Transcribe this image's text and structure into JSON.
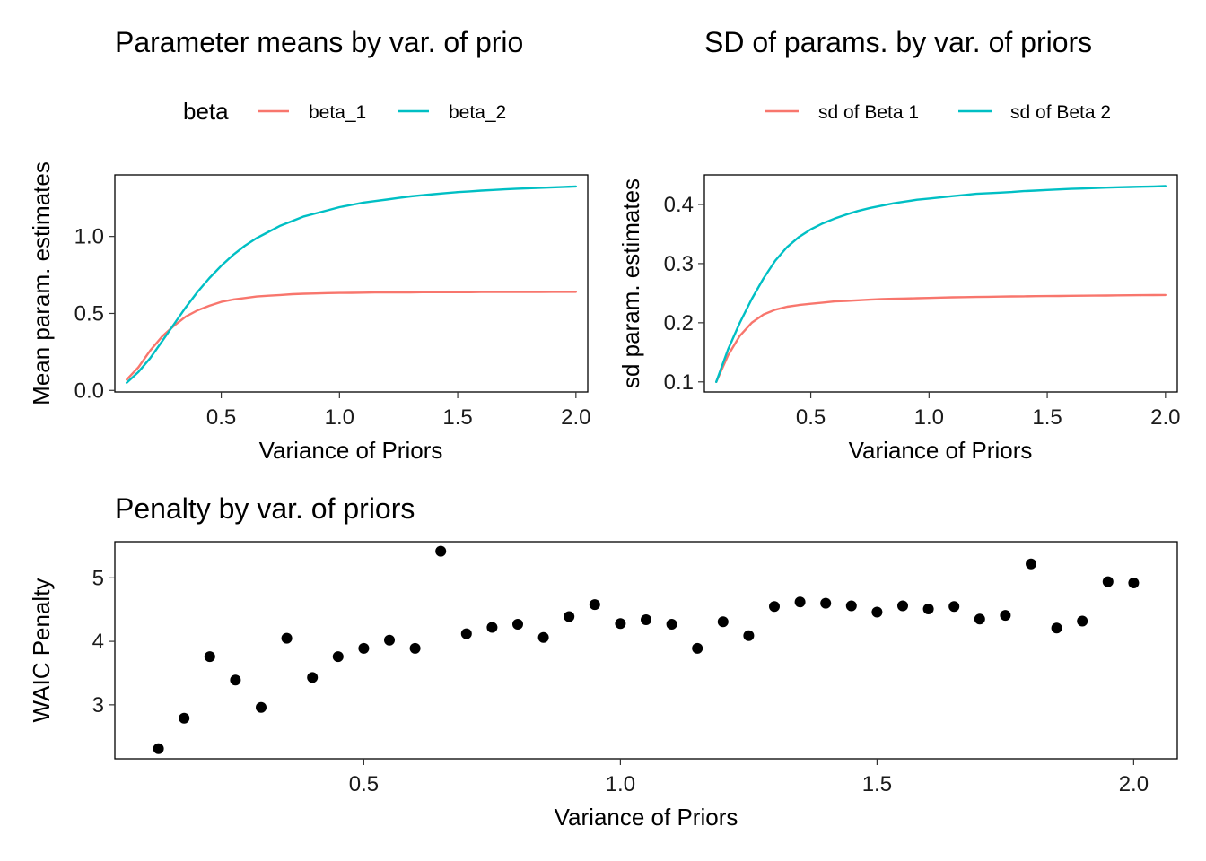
{
  "chart_data": [
    {
      "type": "line",
      "title": "Parameter means by var. of prio",
      "xlabel": "Variance of Priors",
      "ylabel": "Mean param. estimates",
      "xlim": [
        0.05,
        2.05
      ],
      "ylim": [
        -0.01,
        1.4
      ],
      "xticks": [
        0.5,
        1.0,
        1.5,
        2.0
      ],
      "xtick_labels": [
        "0.5",
        "1.0",
        "1.5",
        "2.0"
      ],
      "yticks": [
        0.0,
        0.5,
        1.0
      ],
      "ytick_labels": [
        "0.0",
        "0.5",
        "1.0"
      ],
      "grid": false,
      "legend": {
        "title": "beta",
        "position": "top"
      },
      "x": [
        0.1,
        0.15,
        0.2,
        0.25,
        0.3,
        0.35,
        0.4,
        0.45,
        0.5,
        0.55,
        0.6,
        0.65,
        0.7,
        0.75,
        0.8,
        0.85,
        0.9,
        0.95,
        1.0,
        1.05,
        1.1,
        1.15,
        1.2,
        1.25,
        1.3,
        1.35,
        1.4,
        1.45,
        1.5,
        1.55,
        1.6,
        1.65,
        1.7,
        1.75,
        1.8,
        1.85,
        1.9,
        1.95,
        2.0
      ],
      "series": [
        {
          "name": "beta_1",
          "color": "#F8766D",
          "values": [
            0.07,
            0.15,
            0.26,
            0.35,
            0.42,
            0.48,
            0.52,
            0.55,
            0.575,
            0.59,
            0.6,
            0.61,
            0.615,
            0.62,
            0.625,
            0.628,
            0.63,
            0.632,
            0.633,
            0.634,
            0.635,
            0.636,
            0.636,
            0.637,
            0.637,
            0.638,
            0.638,
            0.638,
            0.638,
            0.638,
            0.639,
            0.639,
            0.639,
            0.639,
            0.639,
            0.639,
            0.64,
            0.64,
            0.64
          ]
        },
        {
          "name": "beta_2",
          "color": "#00BFC4",
          "values": [
            0.05,
            0.12,
            0.21,
            0.32,
            0.43,
            0.54,
            0.64,
            0.73,
            0.81,
            0.88,
            0.94,
            0.99,
            1.03,
            1.07,
            1.1,
            1.13,
            1.15,
            1.17,
            1.19,
            1.205,
            1.22,
            1.23,
            1.24,
            1.25,
            1.26,
            1.268,
            1.275,
            1.282,
            1.288,
            1.293,
            1.298,
            1.302,
            1.306,
            1.31,
            1.313,
            1.316,
            1.319,
            1.322,
            1.325
          ]
        }
      ]
    },
    {
      "type": "line",
      "title": "SD of params. by var. of priors",
      "xlabel": "Variance of Priors",
      "ylabel": "sd param. estimates",
      "xlim": [
        0.05,
        2.05
      ],
      "ylim": [
        0.083,
        0.45
      ],
      "xticks": [
        0.5,
        1.0,
        1.5,
        2.0
      ],
      "xtick_labels": [
        "0.5",
        "1.0",
        "1.5",
        "2.0"
      ],
      "yticks": [
        0.1,
        0.2,
        0.3,
        0.4
      ],
      "ytick_labels": [
        "0.1",
        "0.2",
        "0.3",
        "0.4"
      ],
      "grid": false,
      "legend": {
        "title": "",
        "position": "top"
      },
      "x": [
        0.1,
        0.15,
        0.2,
        0.25,
        0.3,
        0.35,
        0.4,
        0.45,
        0.5,
        0.55,
        0.6,
        0.65,
        0.7,
        0.75,
        0.8,
        0.85,
        0.9,
        0.95,
        1.0,
        1.05,
        1.1,
        1.15,
        1.2,
        1.25,
        1.3,
        1.35,
        1.4,
        1.45,
        1.5,
        1.55,
        1.6,
        1.65,
        1.7,
        1.75,
        1.8,
        1.85,
        1.9,
        1.95,
        2.0
      ],
      "series": [
        {
          "name": "sd of Beta 1",
          "color": "#F8766D",
          "values": [
            0.1,
            0.145,
            0.178,
            0.2,
            0.214,
            0.222,
            0.227,
            0.23,
            0.232,
            0.234,
            0.236,
            0.237,
            0.238,
            0.239,
            0.24,
            0.2405,
            0.241,
            0.2415,
            0.242,
            0.2425,
            0.243,
            0.2433,
            0.2436,
            0.2439,
            0.2442,
            0.2445,
            0.2447,
            0.2449,
            0.2451,
            0.2453,
            0.2455,
            0.2457,
            0.2459,
            0.2461,
            0.2463,
            0.2465,
            0.2467,
            0.2468,
            0.247
          ]
        },
        {
          "name": "sd of Beta 2",
          "color": "#00BFC4",
          "values": [
            0.1,
            0.155,
            0.2,
            0.24,
            0.275,
            0.305,
            0.328,
            0.345,
            0.358,
            0.368,
            0.376,
            0.383,
            0.389,
            0.394,
            0.398,
            0.402,
            0.405,
            0.408,
            0.41,
            0.412,
            0.414,
            0.416,
            0.418,
            0.419,
            0.42,
            0.421,
            0.4225,
            0.4235,
            0.4245,
            0.4255,
            0.4263,
            0.427,
            0.4277,
            0.4284,
            0.429,
            0.4296,
            0.43,
            0.4305,
            0.431
          ]
        }
      ]
    },
    {
      "type": "scatter",
      "title": "Penalty by var. of priors",
      "xlabel": "Variance of Priors",
      "ylabel": "WAIC Penalty",
      "xlim": [
        0.015,
        2.085
      ],
      "ylim": [
        2.15,
        5.57
      ],
      "xticks": [
        0.5,
        1.0,
        1.5,
        2.0
      ],
      "xtick_labels": [
        "0.5",
        "1.0",
        "1.5",
        "2.0"
      ],
      "yticks": [
        3,
        4,
        5
      ],
      "ytick_labels": [
        "3",
        "4",
        "5"
      ],
      "grid": false,
      "x": [
        0.1,
        0.15,
        0.2,
        0.25,
        0.3,
        0.35,
        0.4,
        0.45,
        0.5,
        0.55,
        0.6,
        0.65,
        0.7,
        0.75,
        0.8,
        0.85,
        0.9,
        0.95,
        1.0,
        1.05,
        1.1,
        1.15,
        1.2,
        1.25,
        1.3,
        1.35,
        1.4,
        1.45,
        1.5,
        1.55,
        1.6,
        1.65,
        1.7,
        1.75,
        1.8,
        1.85,
        1.9,
        1.95,
        2.0
      ],
      "values": [
        2.31,
        2.79,
        3.76,
        3.39,
        2.96,
        4.05,
        3.43,
        3.76,
        3.89,
        4.02,
        3.89,
        5.42,
        4.12,
        4.22,
        4.27,
        4.06,
        4.39,
        4.58,
        4.28,
        4.34,
        4.27,
        3.89,
        4.31,
        4.09,
        4.55,
        4.62,
        4.6,
        4.56,
        4.46,
        4.56,
        4.51,
        4.55,
        4.35,
        4.41,
        5.22,
        4.21,
        4.32,
        4.94,
        4.92
      ],
      "point_color": "#000000"
    }
  ]
}
